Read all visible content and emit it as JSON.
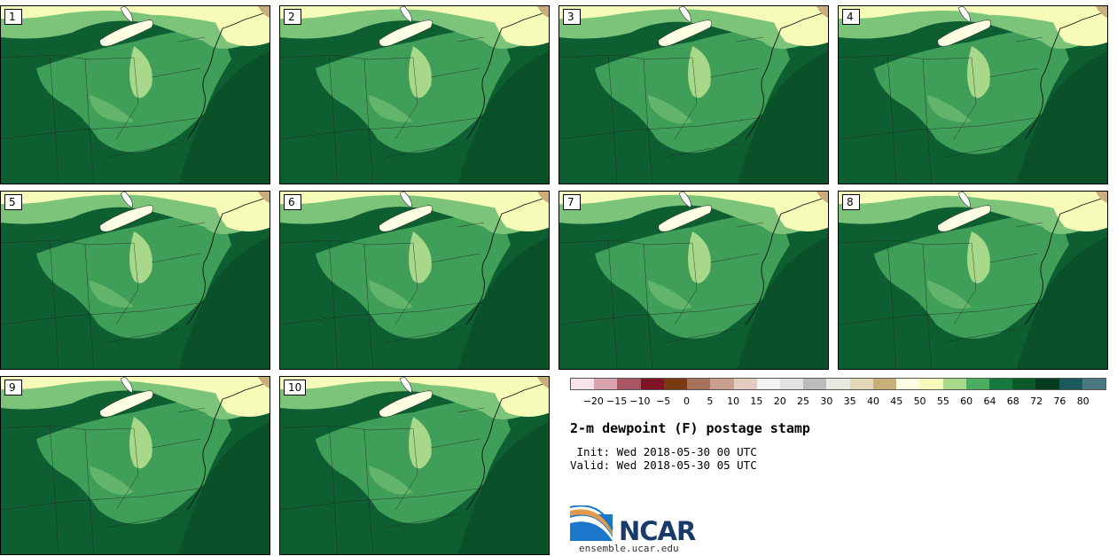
{
  "panels": [
    {
      "label": "1"
    },
    {
      "label": "2"
    },
    {
      "label": "3"
    },
    {
      "label": "4"
    },
    {
      "label": "5"
    },
    {
      "label": "6"
    },
    {
      "label": "7"
    },
    {
      "label": "8"
    },
    {
      "label": "9"
    },
    {
      "label": "10"
    }
  ],
  "colorbar": {
    "colors": [
      "#f6e4ea",
      "#d9a3b0",
      "#a95563",
      "#7e1424",
      "#7c3a12",
      "#a8725a",
      "#c7a090",
      "#e3ccbf",
      "#f3f3f3",
      "#e3e3e3",
      "#bcbcbc",
      "#e9e9e0",
      "#e3d6b6",
      "#c9ae7c",
      "#ffffe3",
      "#f6fbb8",
      "#a8d98a",
      "#4aad62",
      "#16793d",
      "#0b5a2b",
      "#043c20",
      "#195b5d",
      "#4a7a80"
    ],
    "ticks": [
      "−20",
      "−15",
      "−10",
      "−5",
      "0",
      "5",
      "10",
      "15",
      "20",
      "25",
      "30",
      "35",
      "40",
      "45",
      "50",
      "55",
      "60",
      "64",
      "68",
      "72",
      "76",
      "80"
    ]
  },
  "title": "2-m dewpoint (F) postage stamp",
  "init": " Init: Wed 2018-05-30 00 UTC",
  "valid": "Valid: Wed 2018-05-30 05 UTC",
  "logo": {
    "text": "NCAR",
    "url": "ensemble.ucar.edu"
  }
}
